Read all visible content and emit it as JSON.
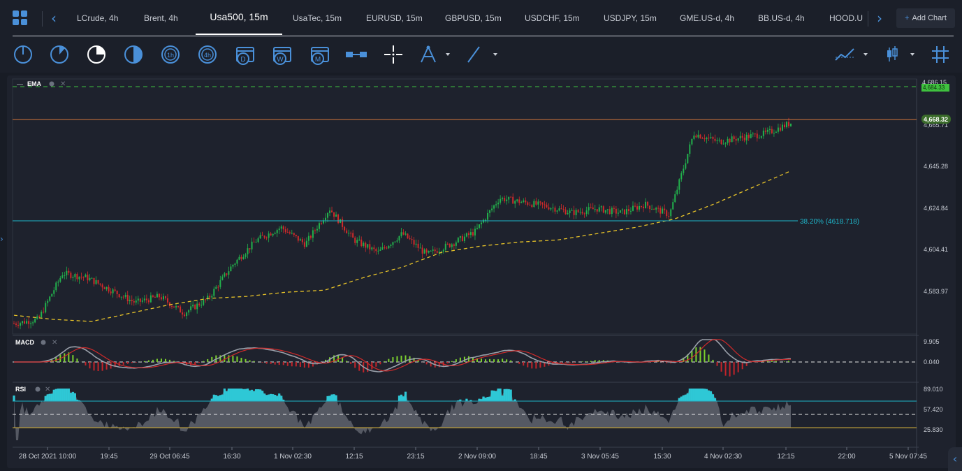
{
  "tabs": [
    {
      "label": "LCrude, 4h",
      "active": false
    },
    {
      "label": "Brent, 4h",
      "active": false
    },
    {
      "label": "Usa500, 15m",
      "active": true
    },
    {
      "label": "UsaTec, 15m",
      "active": false
    },
    {
      "label": "EURUSD, 15m",
      "active": false
    },
    {
      "label": "GBPUSD, 15m",
      "active": false
    },
    {
      "label": "USDCHF, 15m",
      "active": false
    },
    {
      "label": "USDJPY, 15m",
      "active": false
    },
    {
      "label": "GME.US-d, 4h",
      "active": false
    },
    {
      "label": "BB.US-d, 4h",
      "active": false
    },
    {
      "label": "HOOD.US",
      "active": false
    }
  ],
  "add_chart_label": "Add Chart",
  "toolbar": {
    "timeframe_icons": [
      "1m",
      "5m",
      "15m",
      "30m",
      "1h",
      "4h"
    ],
    "period_icons": [
      "D",
      "W",
      "M"
    ]
  },
  "colors": {
    "accent": "#4a90d9",
    "up_candle": "#22b14c",
    "down_candle": "#d02a2a",
    "ema_line": "#e6c229",
    "fib_line": "#1fb5c9",
    "price_line": "#d1773a",
    "dashed_top": "#3fc13f"
  },
  "main_panel": {
    "indicator_label": "EMA",
    "price_ticks": [
      "4,686.15",
      "4,665.71",
      "4,645.28",
      "4,624.84",
      "4,604.41",
      "4,583.97"
    ],
    "current_price": "4,668.32",
    "top_dashed_price": "4,684.33",
    "fib_label": "38.20% (4618.718)"
  },
  "macd_panel": {
    "label": "MACD",
    "ticks": [
      "9.905",
      "0.040"
    ]
  },
  "rsi_panel": {
    "label": "RSI",
    "ticks": [
      "89.010",
      "57.420",
      "25.830"
    ]
  },
  "time_axis": [
    "28 Oct 2021 10:00",
    "19:45",
    "29 Oct 06:45",
    "16:30",
    "1 Nov 02:30",
    "12:15",
    "23:15",
    "2 Nov 09:00",
    "18:45",
    "3 Nov 05:45",
    "15:30",
    "4 Nov 02:30",
    "12:15",
    "22:00",
    "5 Nov 07:45"
  ],
  "chart_data": {
    "type": "candlestick",
    "symbol": "Usa500",
    "interval": "15m",
    "ylim": [
      4569,
      4688
    ],
    "ema": [
      4576,
      4574,
      4573,
      4577,
      4581,
      4584,
      4585,
      4587,
      4588,
      4594,
      4599,
      4606,
      4609,
      4611,
      4612,
      4615,
      4618,
      4622,
      4629,
      4637,
      4645
    ],
    "close_path": [
      4572,
      4574,
      4596,
      4594,
      4588,
      4582,
      4585,
      4577,
      4584,
      4600,
      4612,
      4618,
      4610,
      4627,
      4612,
      4606,
      4615,
      4605,
      4610,
      4616,
      4632,
      4630,
      4628,
      4625,
      4627,
      4625,
      4629,
      4624,
      4663,
      4659,
      4661,
      4663,
      4668
    ]
  }
}
